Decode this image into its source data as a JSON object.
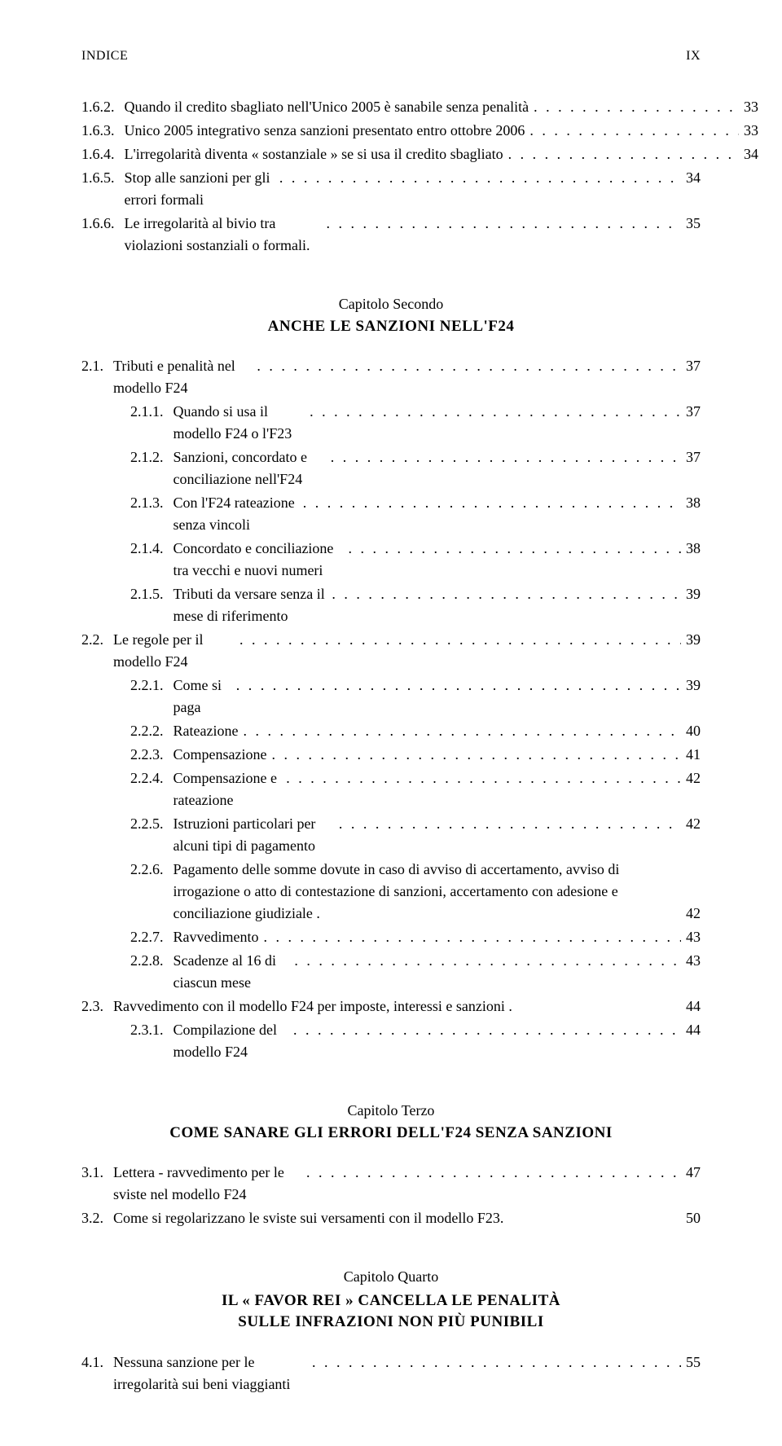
{
  "header": {
    "left": "INDICE",
    "right": "IX"
  },
  "sections": [
    {
      "entries": [
        {
          "num": "1.6.2.",
          "text": "Quando il credito sbagliato nell'Unico 2005 è sanabile senza penalità",
          "page": "33",
          "indent": 1,
          "wrap": true
        },
        {
          "num": "1.6.3.",
          "text": "Unico 2005 integrativo senza sanzioni presentato entro ottobre 2006",
          "page": "33",
          "indent": 1,
          "wrap": true
        },
        {
          "num": "1.6.4.",
          "text": "L'irregolarità diventa « sostanziale » se si usa il credito sbagliato",
          "page": "34",
          "indent": 1,
          "wrap": true
        },
        {
          "num": "1.6.5.",
          "text": "Stop alle sanzioni per gli errori formali",
          "page": "34",
          "indent": 1
        },
        {
          "num": "1.6.6.",
          "text": "Le irregolarità al bivio tra violazioni sostanziali o formali.",
          "page": "35",
          "indent": 1
        }
      ]
    }
  ],
  "chapter2": {
    "label": "Capitolo Secondo",
    "title": "ANCHE LE SANZIONI NELL'F24",
    "entries": [
      {
        "num": "2.1.",
        "text": "Tributi e penalità nel modello F24",
        "page": "37",
        "indent": 1
      },
      {
        "num": "2.1.1.",
        "text": "Quando si usa il modello F24 o l'F23",
        "page": "37",
        "indent": 2
      },
      {
        "num": "2.1.2.",
        "text": "Sanzioni, concordato e conciliazione nell'F24",
        "page": "37",
        "indent": 2
      },
      {
        "num": "2.1.3.",
        "text": "Con l'F24 rateazione senza vincoli",
        "page": "38",
        "indent": 2
      },
      {
        "num": "2.1.4.",
        "text": "Concordato e conciliazione tra vecchi e nuovi numeri",
        "page": "38",
        "indent": 2
      },
      {
        "num": "2.1.5.",
        "text": "Tributi da versare senza il mese di riferimento",
        "page": "39",
        "indent": 2
      },
      {
        "num": "2.2.",
        "text": "Le regole per il modello F24",
        "page": "39",
        "indent": 1
      },
      {
        "num": "2.2.1.",
        "text": "Come si paga",
        "page": "39",
        "indent": 2
      },
      {
        "num": "2.2.2.",
        "text": "Rateazione",
        "page": "40",
        "indent": 2
      },
      {
        "num": "2.2.3.",
        "text": "Compensazione",
        "page": "41",
        "indent": 2
      },
      {
        "num": "2.2.4.",
        "text": "Compensazione e rateazione",
        "page": "42",
        "indent": 2
      },
      {
        "num": "2.2.5.",
        "text": "Istruzioni particolari per alcuni tipi di pagamento",
        "page": "42",
        "indent": 2
      },
      {
        "num": "2.2.6.",
        "text": "Pagamento delle somme dovute in caso di avviso di accertamento, avviso di irrogazione o atto di contestazione di sanzioni, accertamento con adesione e conciliazione giudiziale .",
        "page": "42",
        "indent": 2,
        "wrap": true,
        "nodots": true
      },
      {
        "num": "2.2.7.",
        "text": "Ravvedimento",
        "page": "43",
        "indent": 2
      },
      {
        "num": "2.2.8.",
        "text": "Scadenze al 16 di ciascun mese",
        "page": "43",
        "indent": 2
      },
      {
        "num": "2.3.",
        "text": "Ravvedimento con il modello F24 per imposte, interessi e sanzioni .",
        "page": "44",
        "indent": 1,
        "nodots": true
      },
      {
        "num": "2.3.1.",
        "text": "Compilazione del modello F24",
        "page": "44",
        "indent": 2
      }
    ]
  },
  "chapter3": {
    "label": "Capitolo Terzo",
    "title": "COME SANARE GLI ERRORI DELL'F24 SENZA SANZIONI",
    "entries": [
      {
        "num": "3.1.",
        "text": "Lettera - ravvedimento per le sviste nel modello F24",
        "page": "47",
        "indent": 1
      },
      {
        "num": "3.2.",
        "text": "Come si regolarizzano le sviste sui versamenti con il modello F23.",
        "page": "50",
        "indent": 1,
        "nodots": true
      }
    ]
  },
  "chapter4": {
    "label": "Capitolo Quarto",
    "title_line1": "IL « FAVOR REI » CANCELLA LE PENALITÀ",
    "title_line2": "SULLE INFRAZIONI NON PIÙ PUNIBILI",
    "entries": [
      {
        "num": "4.1.",
        "text": "Nessuna sanzione per le irregolarità sui beni viaggianti",
        "page": "55",
        "indent": 1
      }
    ]
  },
  "dots": ". . . . . . . . . . . . . . . . . . . . . . . . . . . . . . . . . . . . . . . . . . . . . . . . . ."
}
